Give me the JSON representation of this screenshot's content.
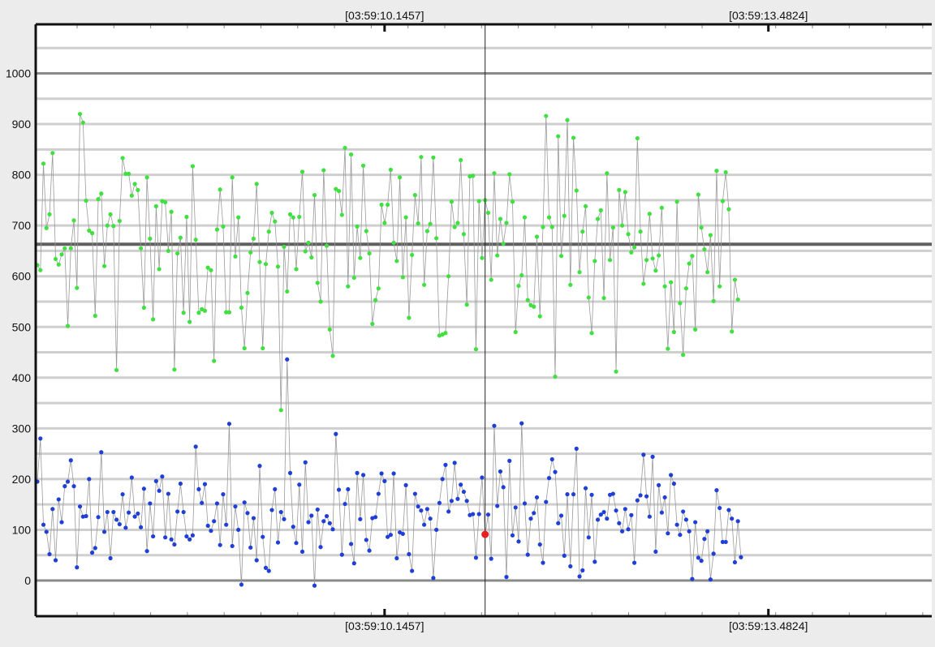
{
  "chart_data": {
    "type": "scatter",
    "title": "",
    "xlabel": "",
    "ylabel": "",
    "x_range": [
      0,
      294
    ],
    "ylim": [
      -70,
      1100
    ],
    "y_ticks": [
      0,
      100,
      200,
      300,
      400,
      500,
      600,
      700,
      800,
      900,
      1000
    ],
    "y_tick_labels": [
      "0",
      "100",
      "200",
      "300",
      "400",
      "500",
      "600",
      "700",
      "800",
      "900",
      "1000"
    ],
    "time_labels": [
      {
        "label": "[03:59:10.1457]",
        "x": 114
      },
      {
        "label": "[03:59:13.4824]",
        "x": 240
      }
    ],
    "grid": true,
    "cursor": {
      "x": 147,
      "marker_y": 91
    },
    "colors": {
      "green_series": "#3fe03f",
      "blue_series": "#1f3fd6",
      "marker": "#e82020",
      "mean_line": "#606060",
      "connector": "#9a9a9a",
      "grid_major": "#8a8a8a",
      "grid_minor": "#cfcfcf"
    },
    "series": [
      {
        "values": [
          622,
          612,
          822,
          695,
          722,
          843,
          634,
          623,
          643,
          655,
          502,
          655,
          710,
          577,
          920,
          903,
          749,
          690,
          685,
          522,
          752,
          763,
          620,
          700,
          722,
          699,
          415,
          709,
          833,
          802,
          802,
          759,
          782,
          770,
          655,
          538,
          795,
          674,
          515,
          738,
          614,
          748,
          746,
          650,
          727,
          416,
          645,
          676,
          528,
          717,
          510,
          817,
          672,
          528,
          535,
          532,
          617,
          612,
          433,
          692,
          771,
          698,
          529,
          529,
          795,
          639,
          716,
          538,
          458,
          567,
          647,
          674,
          782,
          628,
          458,
          624,
          688,
          725,
          708,
          619,
          336,
          658,
          570,
          722,
          716,
          614,
          717,
          806,
          649,
          666,
          637,
          760,
          587,
          550,
          809,
          660,
          495,
          443,
          772,
          768,
          721,
          853,
          580,
          840,
          597,
          698,
          636,
          818,
          689,
          645,
          506,
          553,
          576,
          741,
          705,
          741,
          810,
          666,
          630,
          795,
          598,
          716,
          518,
          642,
          760,
          704,
          835,
          583,
          689,
          703,
          834,
          675,
          483,
          485,
          488,
          600,
          747,
          697,
          705,
          829,
          683,
          544,
          797,
          798,
          456,
          748,
          636,
          750,
          725,
          593,
          803,
          641,
          713,
          664,
          705,
          801,
          747,
          490,
          581,
          602,
          716,
          553,
          543,
          540,
          678,
          521,
          697,
          916,
          716,
          697,
          402,
          876,
          640,
          719,
          908,
          583,
          873,
          769,
          608,
          688,
          738,
          558,
          488,
          630,
          713,
          730,
          557,
          803,
          632,
          696,
          412,
          770,
          700,
          766,
          683,
          647,
          657,
          872,
          688,
          585,
          632,
          723,
          635,
          611,
          641,
          735,
          580,
          457,
          588,
          490,
          747,
          547,
          445,
          576,
          625,
          640,
          495,
          761,
          696,
          653,
          608,
          681,
          551,
          808,
          580,
          748,
          805,
          732,
          491,
          593,
          554
        ],
        "values_mean": 663
      },
      {
        "values": [
          195,
          280,
          110,
          96,
          52,
          141,
          40,
          160,
          115,
          186,
          195,
          237,
          186,
          26,
          146,
          126,
          127,
          200,
          55,
          64,
          125,
          253,
          96,
          135,
          44,
          135,
          120,
          111,
          170,
          104,
          134,
          203,
          126,
          132,
          105,
          181,
          58,
          152,
          87,
          196,
          177,
          205,
          85,
          171,
          81,
          71,
          136,
          191,
          135,
          87,
          81,
          89,
          264,
          180,
          153,
          190,
          108,
          98,
          117,
          152,
          70,
          170,
          110,
          309,
          68,
          146,
          100,
          -8,
          154,
          133,
          65,
          123,
          40,
          226,
          86,
          25,
          19,
          139,
          180,
          75,
          135,
          121,
          436,
          212,
          106,
          74,
          189,
          57,
          233,
          115,
          128,
          -10,
          140,
          66,
          117,
          127,
          113,
          101,
          289,
          179,
          51,
          151,
          180,
          72,
          34,
          212,
          121,
          208,
          80,
          59,
          123,
          125,
          171,
          211,
          196,
          86,
          90,
          211,
          44,
          95,
          92,
          188,
          52,
          19,
          171,
          146,
          138,
          110,
          141,
          122,
          5,
          100,
          153,
          200,
          228,
          136,
          157,
          232,
          161,
          189,
          175,
          157,
          129,
          131,
          45,
          131,
          203,
          88,
          130,
          43,
          305,
          147,
          215,
          184,
          7,
          236,
          89,
          144,
          77,
          310,
          152,
          51,
          122,
          133,
          164,
          71,
          35,
          155,
          202,
          239,
          214,
          113,
          128,
          49,
          170,
          28,
          170,
          260,
          8,
          20,
          182,
          85,
          169,
          37,
          120,
          130,
          135,
          122,
          169,
          171,
          138,
          113,
          97,
          141,
          101,
          129,
          35,
          158,
          168,
          248,
          166,
          126,
          244,
          57,
          188,
          134,
          164,
          93,
          208,
          191,
          110,
          90,
          136,
          120,
          97,
          3,
          115,
          45,
          39,
          82,
          97,
          2,
          53,
          178,
          143,
          76,
          76,
          139,
          122,
          36,
          117,
          46
        ]
      }
    ]
  }
}
